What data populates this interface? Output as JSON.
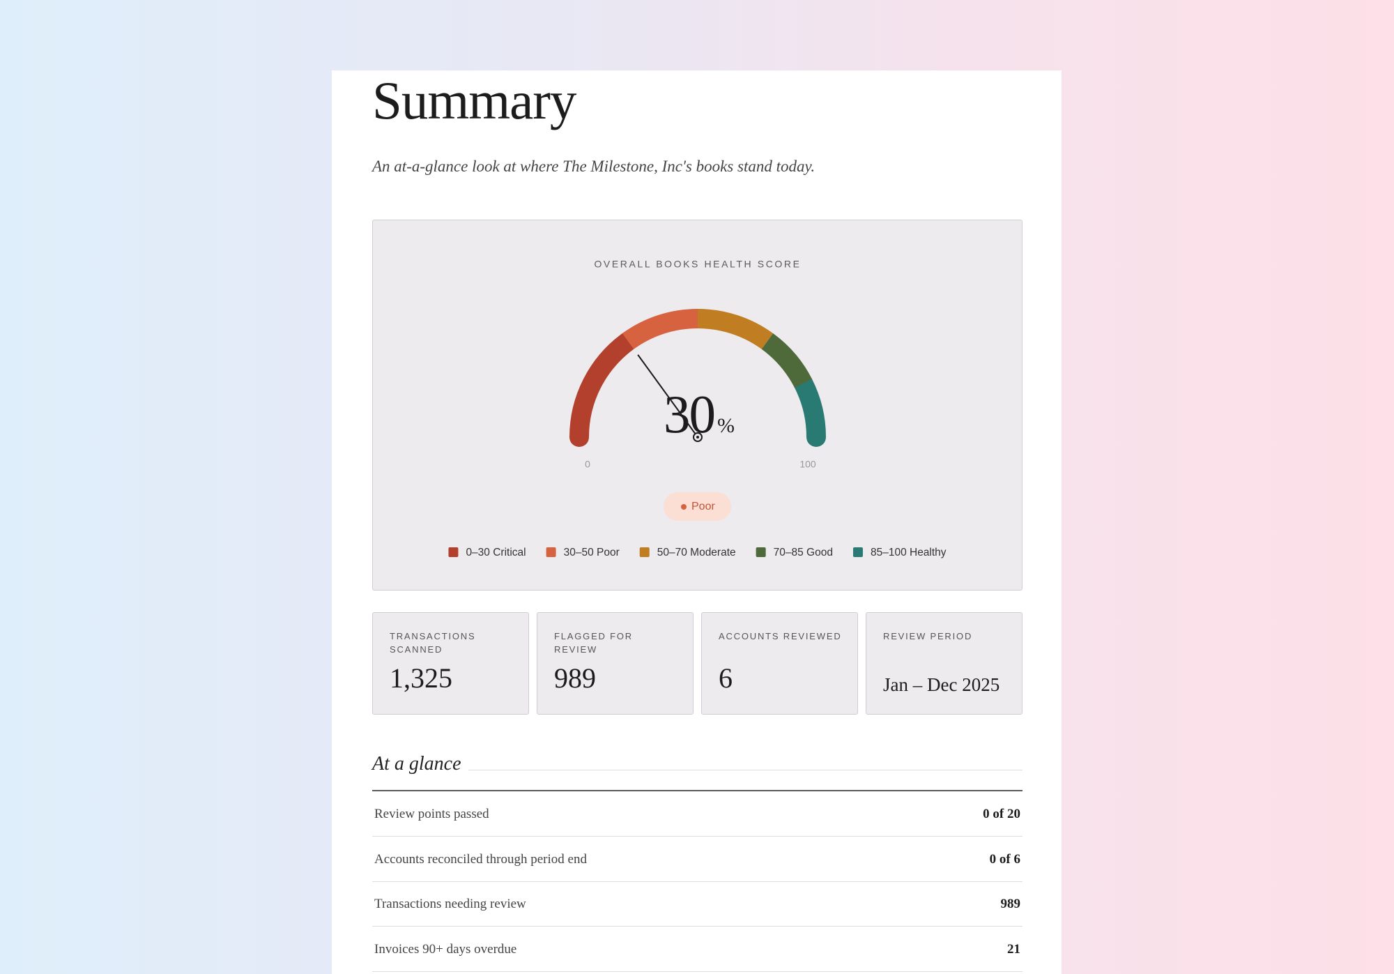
{
  "header": {
    "title": "Summary",
    "subtitle": "An at-a-glance look at where The Milestone, Inc's books stand today."
  },
  "gauge": {
    "title": "OVERALL BOOKS HEALTH SCORE",
    "value": 30,
    "unit": "%",
    "min": 0,
    "max": 100,
    "status": "Poor",
    "bands": [
      {
        "label": "0–30 Critical",
        "from": 0,
        "to": 30,
        "color": "#b2402c"
      },
      {
        "label": "30–50 Poor",
        "from": 30,
        "to": 50,
        "color": "#d6623f"
      },
      {
        "label": "50–70 Moderate",
        "from": 50,
        "to": 70,
        "color": "#c07d22"
      },
      {
        "label": "70–85 Good",
        "from": 70,
        "to": 85,
        "color": "#4e6a3a"
      },
      {
        "label": "85–100 Healthy",
        "from": 85,
        "to": 100,
        "color": "#2a7a74"
      }
    ]
  },
  "stats": [
    {
      "label": "TRANSACTIONS SCANNED",
      "value": "1,325"
    },
    {
      "label": "FLAGGED FOR REVIEW",
      "value": 989
    },
    {
      "label": "ACCOUNTS REVIEWED",
      "value": 6
    },
    {
      "label": "REVIEW PERIOD",
      "value": "Jan – Dec 2025"
    }
  ],
  "glance": {
    "title": "At a glance",
    "rows": [
      [
        "Review points passed",
        "0 of 20"
      ],
      [
        "Accounts reconciled through period end",
        "0 of 6"
      ],
      [
        "Transactions needing review",
        989
      ],
      [
        "Invoices 90+ days overdue",
        21
      ]
    ]
  }
}
